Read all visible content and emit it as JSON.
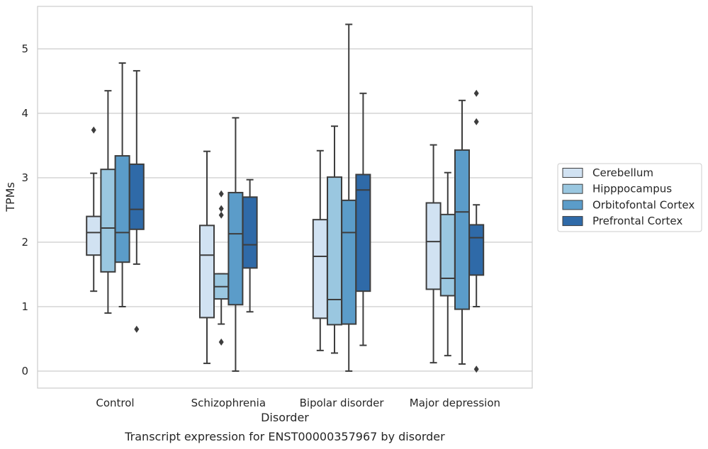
{
  "chart_data": {
    "type": "boxplot",
    "title": "",
    "caption": "Transcript expression for ENST00000357967 by disorder",
    "xlabel": "Disorder",
    "ylabel": "TPMs",
    "ylim": [
      -0.25,
      5.67
    ],
    "yticks": [
      0,
      1,
      2,
      3,
      4,
      5
    ],
    "grid": "horizontal",
    "legend_position": "right",
    "categories": [
      "Control",
      "Schizophrenia",
      "Bipolar disorder",
      "Major depression"
    ],
    "series": [
      {
        "name": "Cerebellum",
        "color": "#d1e2f2",
        "boxes": [
          {
            "whislo": 1.24,
            "q1": 1.8,
            "med": 2.15,
            "q3": 2.4,
            "whishi": 3.07,
            "fliers": [
              3.74
            ]
          },
          {
            "whislo": 0.12,
            "q1": 0.83,
            "med": 1.8,
            "q3": 2.26,
            "whishi": 3.41,
            "fliers": []
          },
          {
            "whislo": 0.32,
            "q1": 0.82,
            "med": 1.78,
            "q3": 2.35,
            "whishi": 3.42,
            "fliers": []
          },
          {
            "whislo": 0.13,
            "q1": 1.27,
            "med": 2.01,
            "q3": 2.61,
            "whishi": 3.51,
            "fliers": []
          }
        ]
      },
      {
        "name": "Hipppocampus",
        "color": "#9ac7e0",
        "boxes": [
          {
            "whislo": 0.9,
            "q1": 1.54,
            "med": 2.22,
            "q3": 3.13,
            "whishi": 4.35,
            "fliers": []
          },
          {
            "whislo": 0.73,
            "q1": 1.12,
            "med": 1.31,
            "q3": 1.51,
            "whishi": 1.51,
            "fliers": [
              2.75,
              2.52,
              2.42,
              0.45
            ]
          },
          {
            "whislo": 0.28,
            "q1": 0.72,
            "med": 1.11,
            "q3": 3.01,
            "whishi": 3.8,
            "fliers": []
          },
          {
            "whislo": 0.24,
            "q1": 1.17,
            "med": 1.44,
            "q3": 2.43,
            "whishi": 3.08,
            "fliers": []
          }
        ]
      },
      {
        "name": "Orbitofontal Cortex",
        "color": "#5b9cc9",
        "boxes": [
          {
            "whislo": 1.0,
            "q1": 1.69,
            "med": 2.15,
            "q3": 3.34,
            "whishi": 4.78,
            "fliers": []
          },
          {
            "whislo": 0.0,
            "q1": 1.03,
            "med": 2.13,
            "q3": 2.77,
            "whishi": 3.93,
            "fliers": []
          },
          {
            "whislo": 0.0,
            "q1": 0.73,
            "med": 2.15,
            "q3": 2.65,
            "whishi": 5.38,
            "fliers": []
          },
          {
            "whislo": 0.11,
            "q1": 0.96,
            "med": 2.47,
            "q3": 3.43,
            "whishi": 4.2,
            "fliers": []
          }
        ]
      },
      {
        "name": "Prefrontal Cortex",
        "color": "#2f6aa8",
        "boxes": [
          {
            "whislo": 1.66,
            "q1": 2.2,
            "med": 2.51,
            "q3": 3.21,
            "whishi": 4.66,
            "fliers": [
              0.65
            ]
          },
          {
            "whislo": 0.92,
            "q1": 1.6,
            "med": 1.96,
            "q3": 2.7,
            "whishi": 2.97,
            "fliers": []
          },
          {
            "whislo": 0.4,
            "q1": 1.24,
            "med": 2.81,
            "q3": 3.05,
            "whishi": 4.31,
            "fliers": []
          },
          {
            "whislo": 1.0,
            "q1": 1.49,
            "med": 2.07,
            "q3": 2.27,
            "whishi": 2.58,
            "fliers": [
              4.31,
              3.87,
              0.03
            ]
          }
        ]
      }
    ]
  }
}
